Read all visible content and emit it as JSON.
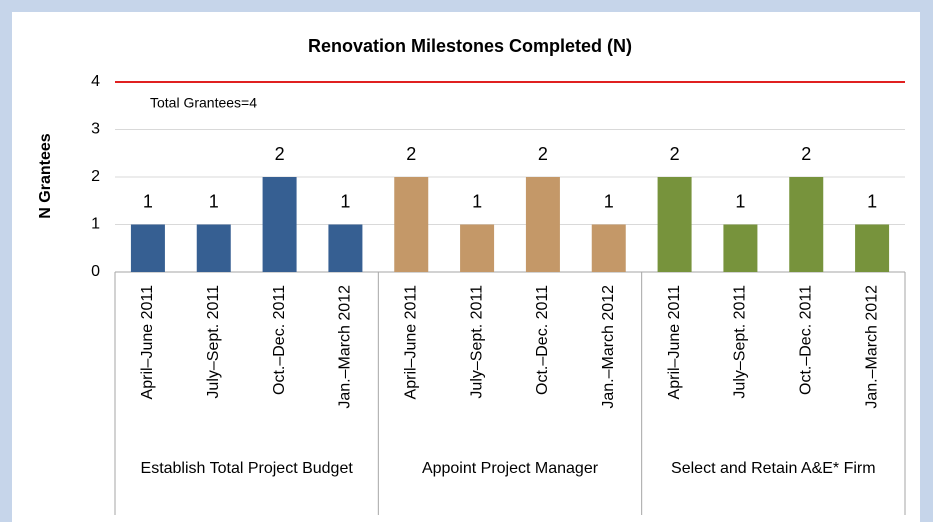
{
  "chart_data": {
    "type": "bar",
    "title": "Renovation Milestones Completed (N)",
    "y_label": "N Grantees",
    "groups": [
      {
        "name": "Establish Total Project Budget",
        "color": "#365f92",
        "categories": [
          "April–June 2011",
          "July–Sept. 2011",
          "Oct.–Dec. 2011",
          "Jan.–March 2012"
        ],
        "values": [
          1,
          1,
          2,
          1
        ]
      },
      {
        "name": "Appoint Project Manager",
        "color": "#c49868",
        "categories": [
          "April–June 2011",
          "July–Sept. 2011",
          "Oct.–Dec. 2011",
          "Jan.–March 2012"
        ],
        "values": [
          2,
          1,
          2,
          1
        ]
      },
      {
        "name": "Select and Retain A&E* Firm",
        "color": "#77933c",
        "categories": [
          "April–June 2011",
          "July–Sept. 2011",
          "Oct.–Dec. 2011",
          "Jan.–March 2012"
        ],
        "values": [
          2,
          1,
          2,
          1
        ]
      }
    ],
    "reference_line": {
      "value": 4,
      "label": "Total Grantees=4",
      "color": "#e02020"
    },
    "ylim": [
      0,
      4
    ],
    "yticks": [
      0,
      1,
      2,
      3,
      4
    ],
    "grid": true
  }
}
